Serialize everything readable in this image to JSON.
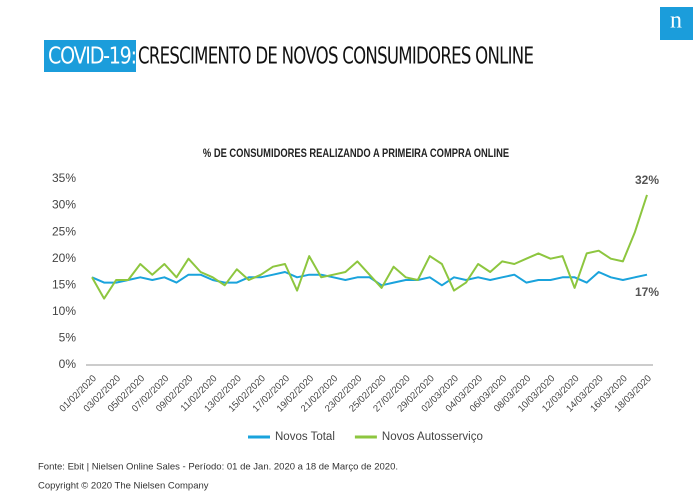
{
  "header": {
    "tag": "COVID-19:",
    "title": "CRESCIMENTO DE NOVOS CONSUMIDORES ONLINE",
    "logo": "n"
  },
  "chart_data": {
    "type": "line",
    "title": "% DE CONSUMIDORES REALIZANDO A PRIMEIRA COMPRA ONLINE",
    "categories": [
      "01/02/2020",
      null,
      "03/02/2020",
      null,
      "05/02/2020",
      null,
      "07/02/2020",
      null,
      "09/02/2020",
      null,
      "11/02/2020",
      null,
      "13/02/2020",
      null,
      "15/02/2020",
      null,
      "17/02/2020",
      null,
      "19/02/2020",
      null,
      "21/02/2020",
      null,
      "23/02/2020",
      null,
      "25/02/2020",
      null,
      "27/02/2020",
      null,
      "29/02/2020",
      null,
      "02/03/2020",
      null,
      "04/03/2020",
      null,
      "06/03/2020",
      null,
      "08/03/2020",
      null,
      "10/03/2020",
      null,
      "12/03/2020",
      null,
      "14/03/2020",
      null,
      "16/03/2020",
      null,
      "18/03/2020"
    ],
    "series": [
      {
        "name": "Novos Total",
        "color": "#1aa3dc",
        "values": [
          16.5,
          15.5,
          15.5,
          16,
          16.5,
          16,
          16.5,
          15.5,
          17,
          17,
          16,
          15.5,
          15.5,
          16.5,
          16.5,
          17,
          17.5,
          16.5,
          17,
          17,
          16.5,
          16,
          16.5,
          16.5,
          15,
          15.5,
          16,
          16,
          16.5,
          15,
          16.5,
          16,
          16.5,
          16,
          16.5,
          17,
          15.5,
          16,
          16,
          16.5,
          16.5,
          15.5,
          17.5,
          16.5,
          16,
          16.5,
          17
        ]
      },
      {
        "name": "Novos Autosserviço",
        "color": "#8dc63f",
        "values": [
          16.5,
          12.5,
          16,
          16,
          19,
          17,
          19,
          16.5,
          20,
          17.5,
          16.5,
          15,
          18,
          16,
          17,
          18.5,
          19,
          14,
          20.5,
          16.5,
          17,
          17.5,
          19.5,
          17,
          14.5,
          18.5,
          16.5,
          16,
          20.5,
          19,
          14,
          15.5,
          19,
          17.5,
          19.5,
          19,
          20,
          21,
          20,
          20.5,
          14.5,
          21,
          21.5,
          20,
          19.5,
          25,
          32
        ]
      }
    ],
    "annotations": [
      "32%",
      "17%"
    ],
    "ylim": [
      0,
      35
    ],
    "yticks": [
      {
        "value": 0,
        "label": "0%"
      },
      {
        "value": 5,
        "label": "5%"
      },
      {
        "value": 10,
        "label": "10%"
      },
      {
        "value": 15,
        "label": "15%"
      },
      {
        "value": 20,
        "label": "20%"
      },
      {
        "value": 25,
        "label": "25%"
      },
      {
        "value": 30,
        "label": "30%"
      },
      {
        "value": 35,
        "label": "35%"
      }
    ]
  },
  "footer": {
    "source": "Fonte: Ebit | Nielsen Online Sales - Período: 01 de Jan. 2020 a 18  de Março de 2020.",
    "copyright": "Copyright © 2020 The Nielsen Company"
  }
}
